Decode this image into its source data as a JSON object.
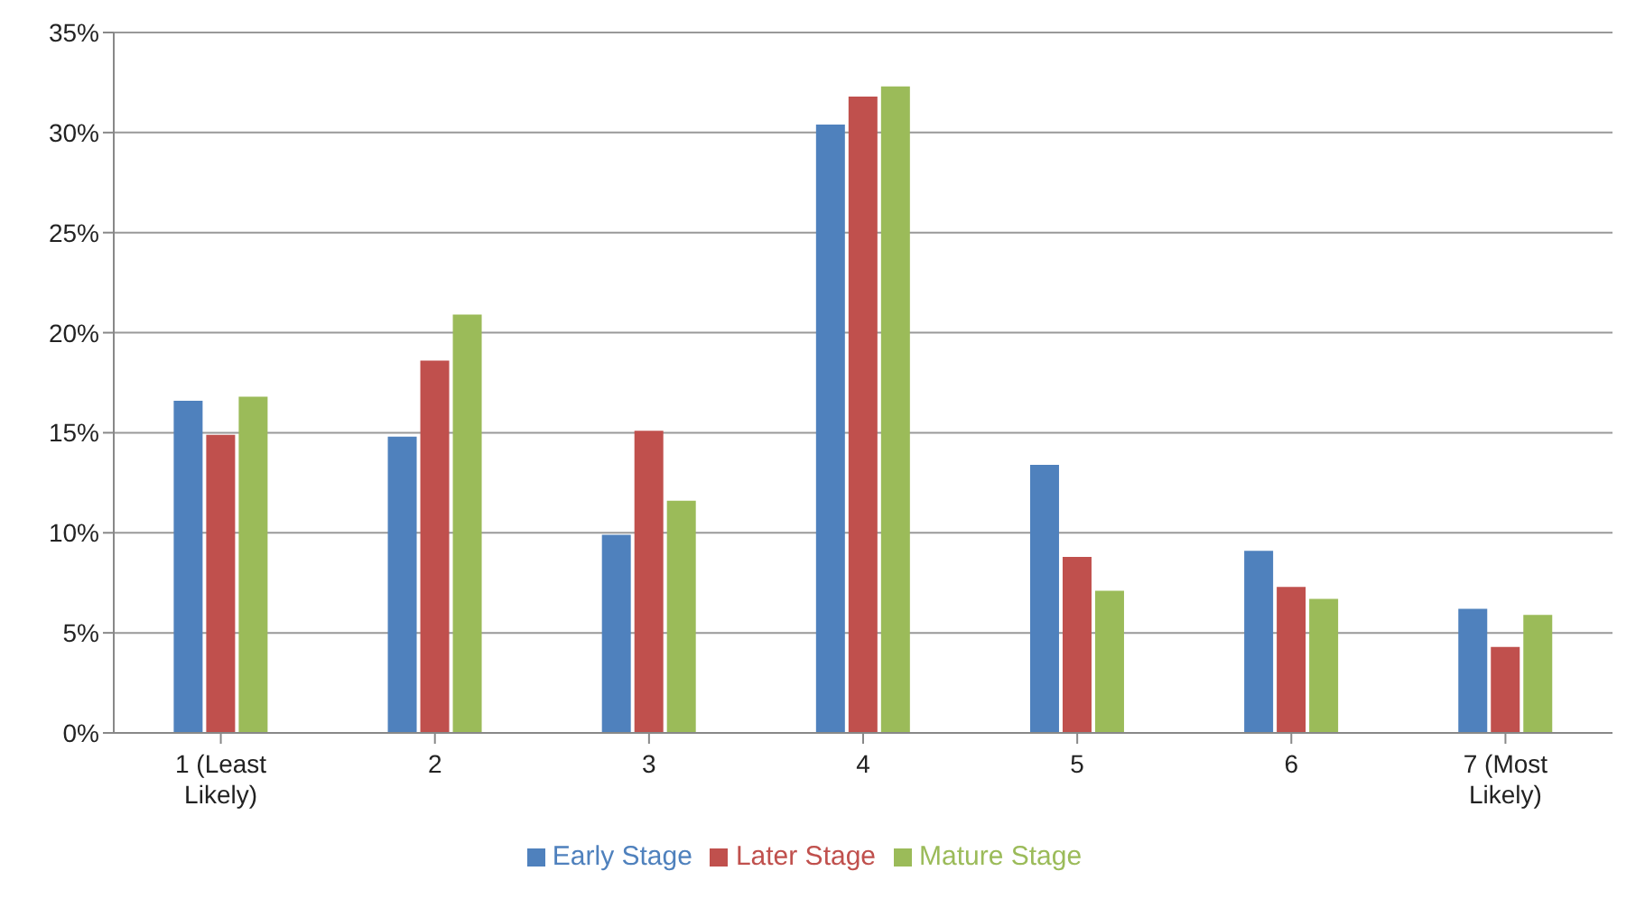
{
  "chart_data": {
    "type": "bar",
    "categories": [
      "1 (Least Likely)",
      "2",
      "3",
      "4",
      "5",
      "6",
      "7 (Most Likely)"
    ],
    "series": [
      {
        "name": "Early Stage",
        "color": "#4f81bd",
        "values": [
          16.6,
          14.8,
          9.9,
          30.4,
          13.4,
          9.1,
          6.2
        ]
      },
      {
        "name": "Later Stage",
        "color": "#c0504d",
        "values": [
          14.9,
          18.6,
          15.1,
          31.8,
          8.8,
          7.3,
          4.3
        ]
      },
      {
        "name": "Mature Stage",
        "color": "#9bbb59",
        "values": [
          16.8,
          20.9,
          11.6,
          32.3,
          7.1,
          6.7,
          5.9
        ]
      }
    ],
    "ylim": [
      0,
      35
    ],
    "yticks": [
      {
        "value": 0,
        "label": "0%"
      },
      {
        "value": 5,
        "label": "5%"
      },
      {
        "value": 10,
        "label": "10%"
      },
      {
        "value": 15,
        "label": "15%"
      },
      {
        "value": 20,
        "label": "20%"
      },
      {
        "value": 25,
        "label": "25%"
      },
      {
        "value": 30,
        "label": "30%"
      },
      {
        "value": 35,
        "label": "35%"
      }
    ],
    "grid": "y",
    "legend": "bottom"
  }
}
